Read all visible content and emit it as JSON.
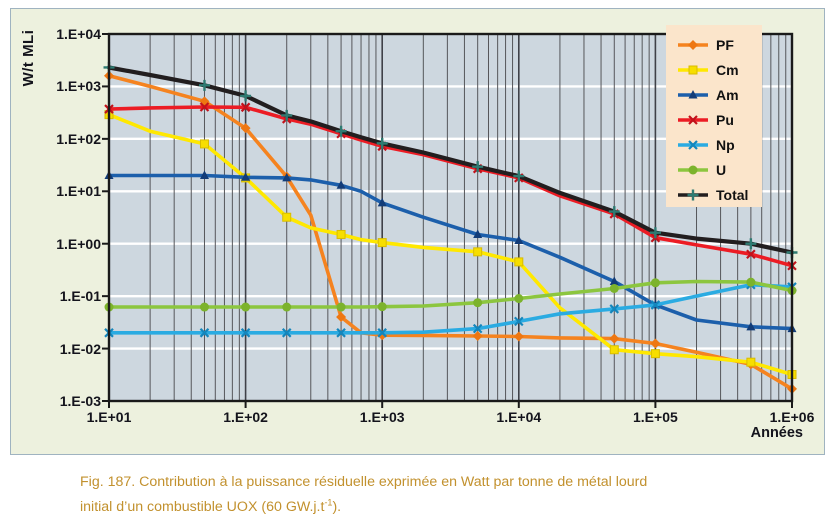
{
  "colors": {
    "panel_bg": "#EDF1DE",
    "panel_border": "#9FB3C0",
    "plot_bg": "#CDD7DF",
    "grid_minor": "#55565A",
    "grid_major": "#3F4148",
    "white_gridline": "#FFFFFF",
    "frame": "#1A1A1A",
    "legend_bg": "#FBE5CB",
    "caption_color": "#C2912E",
    "tick_text": "#14141C"
  },
  "chart_data": {
    "type": "line",
    "x_scale": "log",
    "y_scale": "log",
    "xlabel": "Années",
    "ylabel": "W/t MLi",
    "xlim": [
      10,
      1000000
    ],
    "ylim": [
      0.001,
      10000
    ],
    "grid": true,
    "legend_position": "top-right",
    "x_ticks": [
      {
        "label": "1.E+01",
        "value": 10
      },
      {
        "label": "1.E+02",
        "value": 100
      },
      {
        "label": "1.E+03",
        "value": 1000
      },
      {
        "label": "1.E+04",
        "value": 10000
      },
      {
        "label": "1.E+05",
        "value": 100000
      },
      {
        "label": "1.E+06",
        "value": 1000000
      }
    ],
    "y_ticks": [
      {
        "label": "1.E+04",
        "value": 10000
      },
      {
        "label": "1.E+03",
        "value": 1000
      },
      {
        "label": "1.E+02",
        "value": 100
      },
      {
        "label": "1.E+01",
        "value": 10
      },
      {
        "label": "1.E+00",
        "value": 1
      },
      {
        "label": "1.E-01",
        "value": 0.1
      },
      {
        "label": "1.E-02",
        "value": 0.01
      },
      {
        "label": "1.E-03",
        "value": 0.001
      }
    ],
    "x": [
      10,
      20,
      50,
      100,
      200,
      300,
      500,
      700,
      1000,
      2000,
      5000,
      10000,
      20000,
      50000,
      100000,
      200000,
      500000,
      1000000
    ],
    "marker_x": [
      10,
      50,
      100,
      200,
      500,
      1000,
      5000,
      10000,
      50000,
      100000,
      500000,
      1000000
    ],
    "series": [
      {
        "name": "PF",
        "color": "#F5831F",
        "marker": "diamond",
        "marker_color": "#EE7712",
        "values": [
          1600,
          1000,
          520,
          160,
          19,
          3.5,
          0.04,
          0.02,
          0.018,
          0.0178,
          0.0174,
          0.017,
          0.016,
          0.0155,
          0.0125,
          0.0085,
          0.005,
          0.0017
        ]
      },
      {
        "name": "Cm",
        "color": "#FFE800",
        "marker": "square",
        "marker_color": "#F7DE00",
        "values": [
          290,
          140,
          80,
          18,
          3.2,
          2.0,
          1.5,
          1.2,
          1.05,
          0.85,
          0.7,
          0.45,
          0.06,
          0.0095,
          0.008,
          0.007,
          0.0055,
          0.0032
        ]
      },
      {
        "name": "Am",
        "color": "#1C5FAB",
        "marker": "triangle",
        "marker_color": "#123C78",
        "values": [
          20,
          20,
          20,
          18.5,
          18,
          16.5,
          13,
          10,
          6,
          3.2,
          1.5,
          1.15,
          0.55,
          0.19,
          0.068,
          0.035,
          0.026,
          0.024
        ]
      },
      {
        "name": "Pu",
        "color": "#EC1C24",
        "marker": "x",
        "marker_color": "#C2121B",
        "values": [
          370,
          390,
          405,
          400,
          240,
          190,
          125,
          95,
          72,
          50,
          27,
          18,
          8.2,
          3.7,
          1.3,
          0.95,
          0.63,
          0.38
        ]
      },
      {
        "name": "Np",
        "color": "#2AABE2",
        "marker": "x",
        "marker_color": "#1486BC",
        "values": [
          0.02,
          0.02,
          0.02,
          0.02,
          0.02,
          0.02,
          0.02,
          0.02,
          0.02,
          0.0205,
          0.024,
          0.033,
          0.046,
          0.057,
          0.068,
          0.1,
          0.165,
          0.15
        ]
      },
      {
        "name": "U",
        "color": "#8CC63F",
        "marker": "circle",
        "marker_color": "#7CB32C",
        "values": [
          0.062,
          0.062,
          0.062,
          0.062,
          0.062,
          0.062,
          0.062,
          0.062,
          0.063,
          0.065,
          0.075,
          0.09,
          0.11,
          0.14,
          0.18,
          0.19,
          0.185,
          0.128
        ]
      },
      {
        "name": "Total",
        "color": "#221E1F",
        "marker": "plus",
        "marker_color": "#2E7B72",
        "values": [
          2300,
          1650,
          1050,
          660,
          280,
          215,
          140,
          107,
          82,
          55,
          29.5,
          19.5,
          9.3,
          4.1,
          1.62,
          1.25,
          1.0,
          0.68
        ]
      }
    ]
  },
  "caption": {
    "line1": "Fig. 187. Contribution à la puissance résiduelle exprimée en Watt par tonne de métal lourd",
    "line2_pre": "initial d’un combustible UOX (60 GW.j.t",
    "line2_sup": "-1",
    "line2_post": ")."
  }
}
